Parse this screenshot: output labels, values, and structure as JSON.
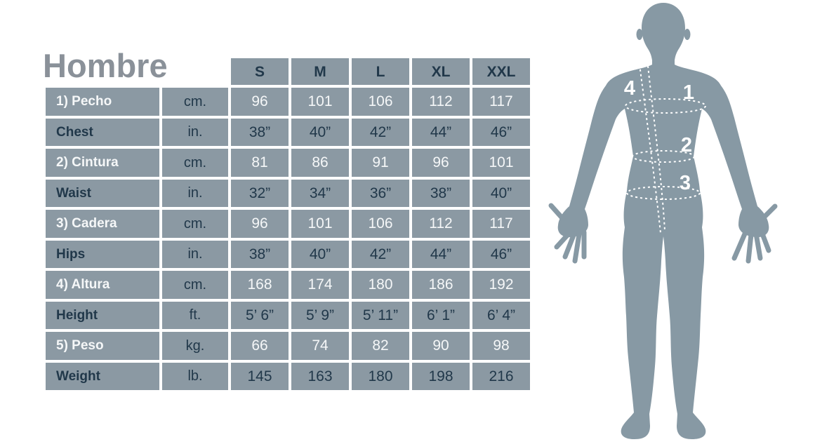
{
  "title": "Hombre",
  "table": {
    "size_headers": [
      "S",
      "M",
      "L",
      "XL",
      "XXL"
    ],
    "rows": [
      {
        "label": "1) Pecho",
        "unit": "cm.",
        "lang": "es",
        "values": [
          "96",
          "101",
          "106",
          "112",
          "117"
        ]
      },
      {
        "label": "Chest",
        "unit": "in.",
        "lang": "en",
        "values": [
          "38”",
          "40”",
          "42”",
          "44”",
          "46”"
        ]
      },
      {
        "label": "2) Cintura",
        "unit": "cm.",
        "lang": "es",
        "values": [
          "81",
          "86",
          "91",
          "96",
          "101"
        ]
      },
      {
        "label": "Waist",
        "unit": "in.",
        "lang": "en",
        "values": [
          "32”",
          "34”",
          "36”",
          "38”",
          "40”"
        ]
      },
      {
        "label": "3) Cadera",
        "unit": "cm.",
        "lang": "es",
        "values": [
          "96",
          "101",
          "106",
          "112",
          "117"
        ]
      },
      {
        "label": "Hips",
        "unit": "in.",
        "lang": "en",
        "values": [
          "38”",
          "40”",
          "42”",
          "44”",
          "46”"
        ]
      },
      {
        "label": "4) Altura",
        "unit": "cm.",
        "lang": "es",
        "values": [
          "168",
          "174",
          "180",
          "186",
          "192"
        ]
      },
      {
        "label": "Height",
        "unit": "ft.",
        "lang": "en",
        "values": [
          "5’ 6”",
          "5’ 9”",
          "5’ 11”",
          "6’ 1”",
          "6’ 4”"
        ]
      },
      {
        "label": "5) Peso",
        "unit": "kg.",
        "lang": "es",
        "values": [
          "66",
          "74",
          "82",
          "90",
          "98"
        ]
      },
      {
        "label": "Weight",
        "unit": "lb.",
        "lang": "en",
        "values": [
          "145",
          "163",
          "180",
          "198",
          "216"
        ]
      }
    ]
  },
  "figure": {
    "markers": [
      "4",
      "1",
      "2",
      "3"
    ]
  },
  "colors": {
    "cell_bg": "#8b99a3",
    "dark_text": "#21384a",
    "light_text": "#f5f7f8",
    "title_text": "#8a9199",
    "figure_fill": "#8799a4",
    "marker_text": "#ffffff"
  }
}
